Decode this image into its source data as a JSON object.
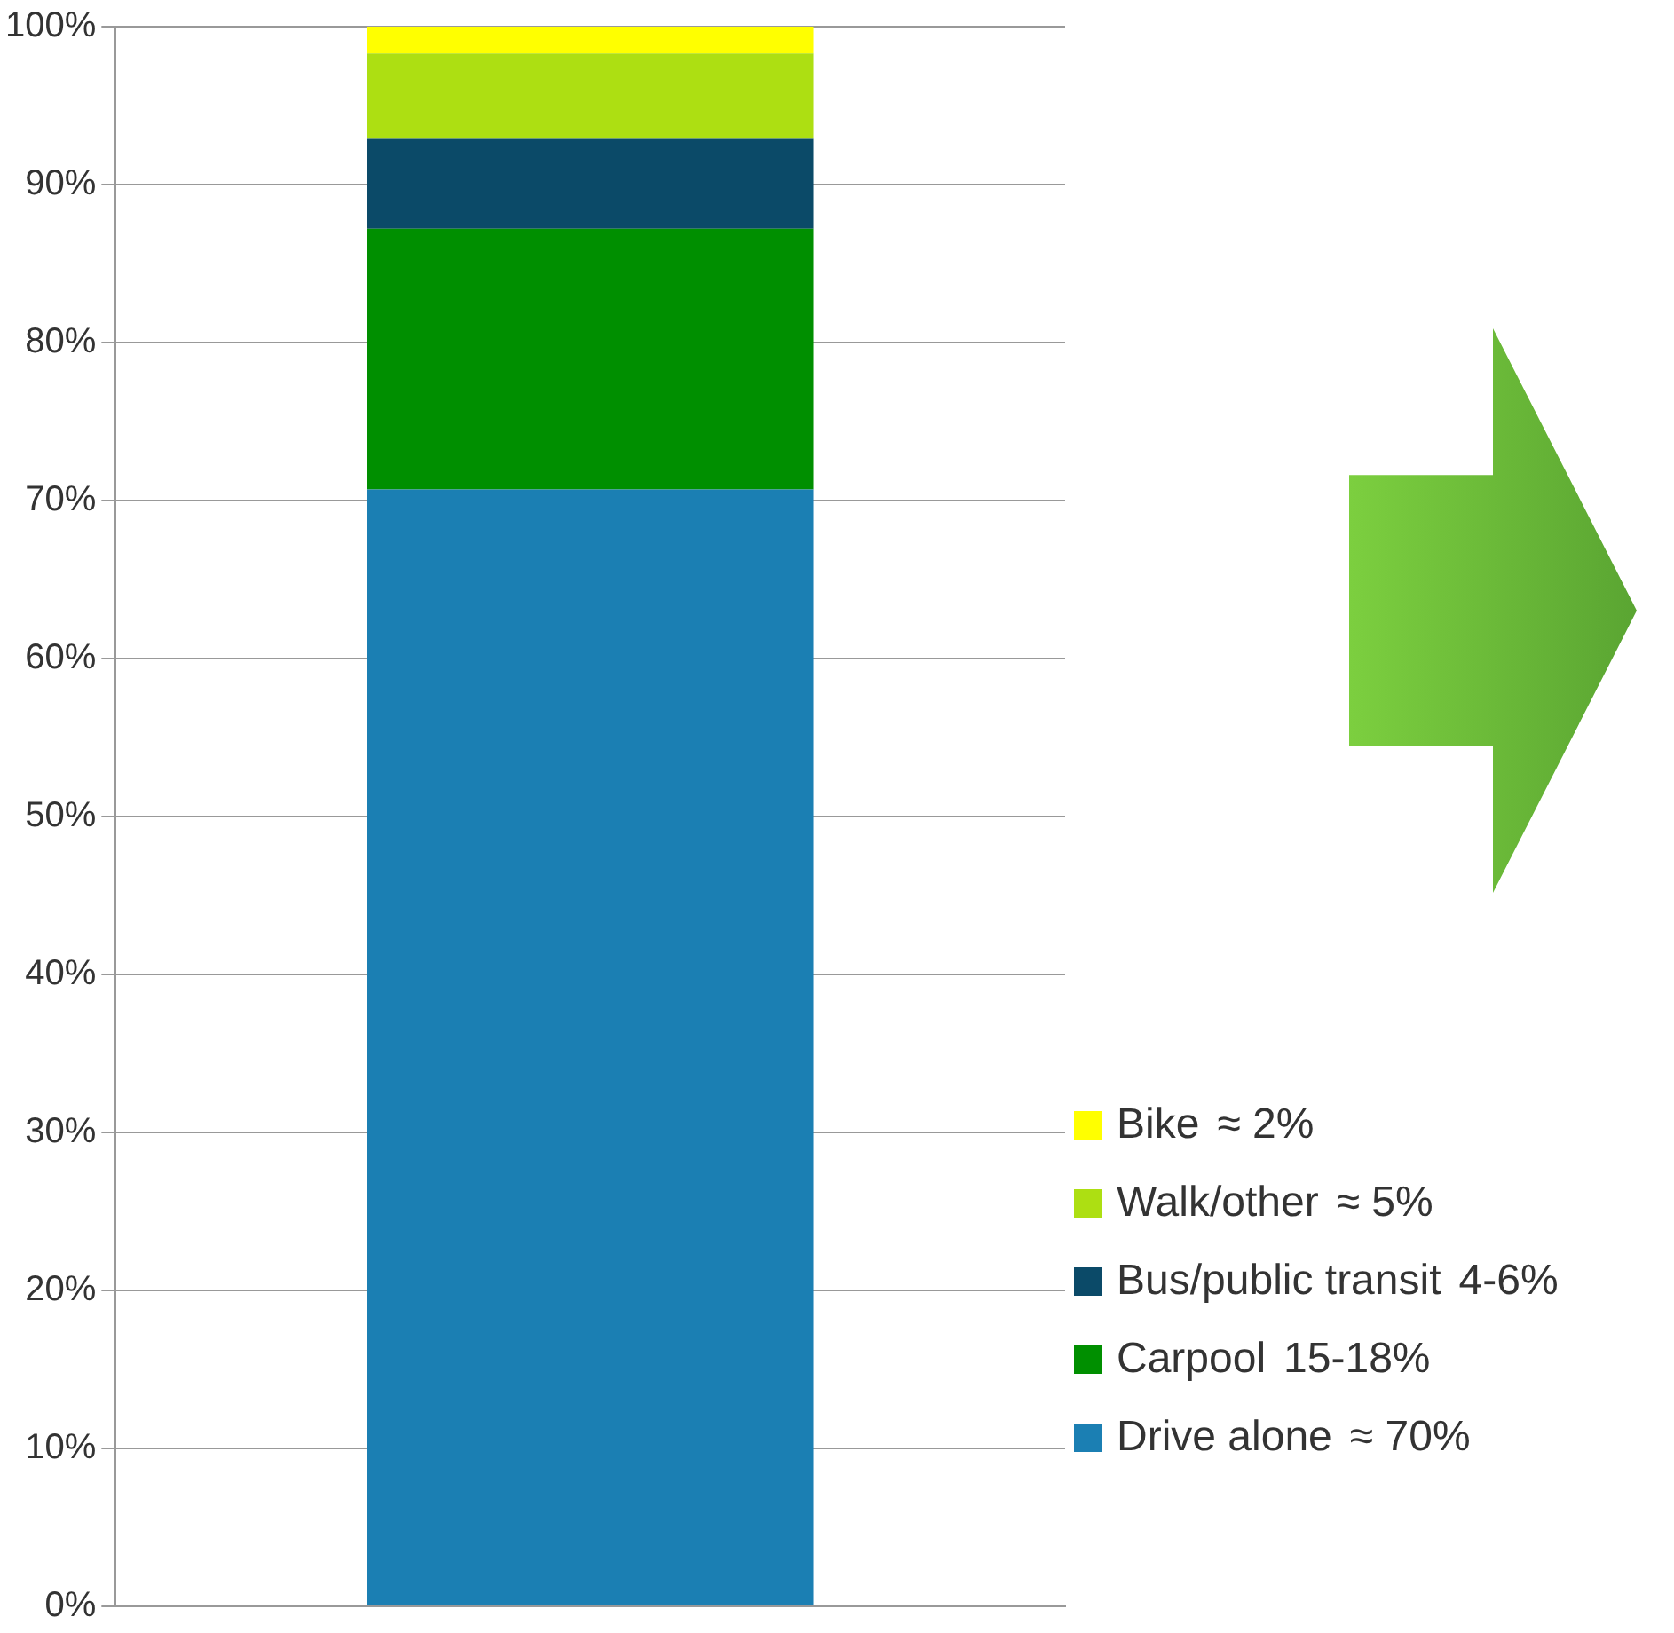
{
  "chart_data": {
    "type": "bar",
    "stacked": true,
    "categories": [
      null
    ],
    "series": [
      {
        "name": "Drive alone",
        "color": "#1b7fb3",
        "values": [
          70.7
        ]
      },
      {
        "name": "Carpool",
        "color": "#008f00",
        "values": [
          16.5
        ]
      },
      {
        "name": "Bus/public transit",
        "color": "#0b4a68",
        "values": [
          5.7
        ]
      },
      {
        "name": "Walk/other",
        "color": "#addf12",
        "values": [
          5.4
        ]
      },
      {
        "name": "Bike",
        "color": "#ffff00",
        "values": [
          1.7
        ]
      }
    ],
    "ylim": [
      0,
      100
    ],
    "yticks": [
      {
        "value": 0,
        "label": "0%"
      },
      {
        "value": 10,
        "label": "10%"
      },
      {
        "value": 20,
        "label": "20%"
      },
      {
        "value": 30,
        "label": "30%"
      },
      {
        "value": 40,
        "label": "40%"
      },
      {
        "value": 50,
        "label": "50%"
      },
      {
        "value": 60,
        "label": "60%"
      },
      {
        "value": 70,
        "label": "70%"
      },
      {
        "value": 80,
        "label": "80%"
      },
      {
        "value": 90,
        "label": "90%"
      },
      {
        "value": 100,
        "label": "100%"
      }
    ],
    "grid": "y",
    "tick_labels": "y",
    "legend": "bottom right",
    "annotations": [
      "≈ 2%",
      "≈ 5%",
      "4-6%",
      "15-18%",
      "≈ 70%"
    ]
  }
}
